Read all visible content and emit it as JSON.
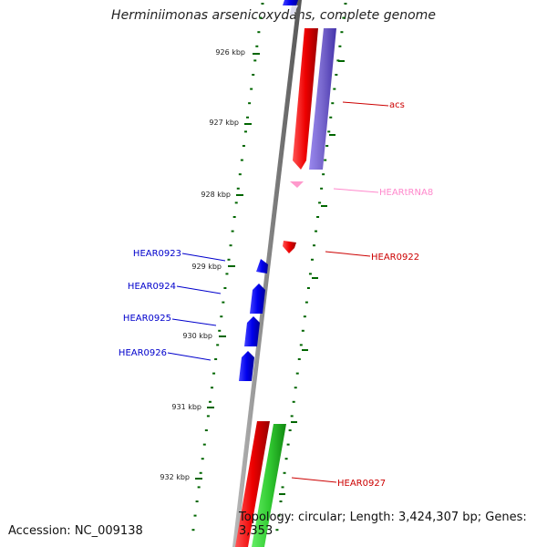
{
  "title": "Herminiimonas arsenicoxydans, complete genome",
  "footer": {
    "accession": "Accession: NC_009138",
    "topology": "Topology: circular; Length: 3,424,307 bp; Genes: 3,353"
  },
  "scale_ticks": [
    {
      "label": "926 kbp"
    },
    {
      "label": "927 kbp"
    },
    {
      "label": "928 kbp"
    },
    {
      "label": "929 kbp"
    },
    {
      "label": "930 kbp"
    },
    {
      "label": "931 kbp"
    },
    {
      "label": "932 kbp"
    }
  ],
  "genes": [
    {
      "name": "acs",
      "color": "#cc0000"
    },
    {
      "name": "HEARtRNA8",
      "color": "#ff88cc"
    },
    {
      "name": "HEAR0922",
      "color": "#cc0000"
    },
    {
      "name": "HEAR0923",
      "color": "#0000cc"
    },
    {
      "name": "HEAR0924",
      "color": "#0000cc"
    },
    {
      "name": "HEAR0925",
      "color": "#0000cc"
    },
    {
      "name": "HEAR0926",
      "color": "#0000cc"
    },
    {
      "name": "HEAR0927",
      "color": "#cc0000"
    }
  ],
  "colors": {
    "backbone": "#888888",
    "tick": "#006600",
    "cds_forward": "#ff0000",
    "cds_reverse": "#0000ff",
    "cog_purple": "#7766cc",
    "cog_green": "#33cc33",
    "trna": "#ff99cc"
  }
}
